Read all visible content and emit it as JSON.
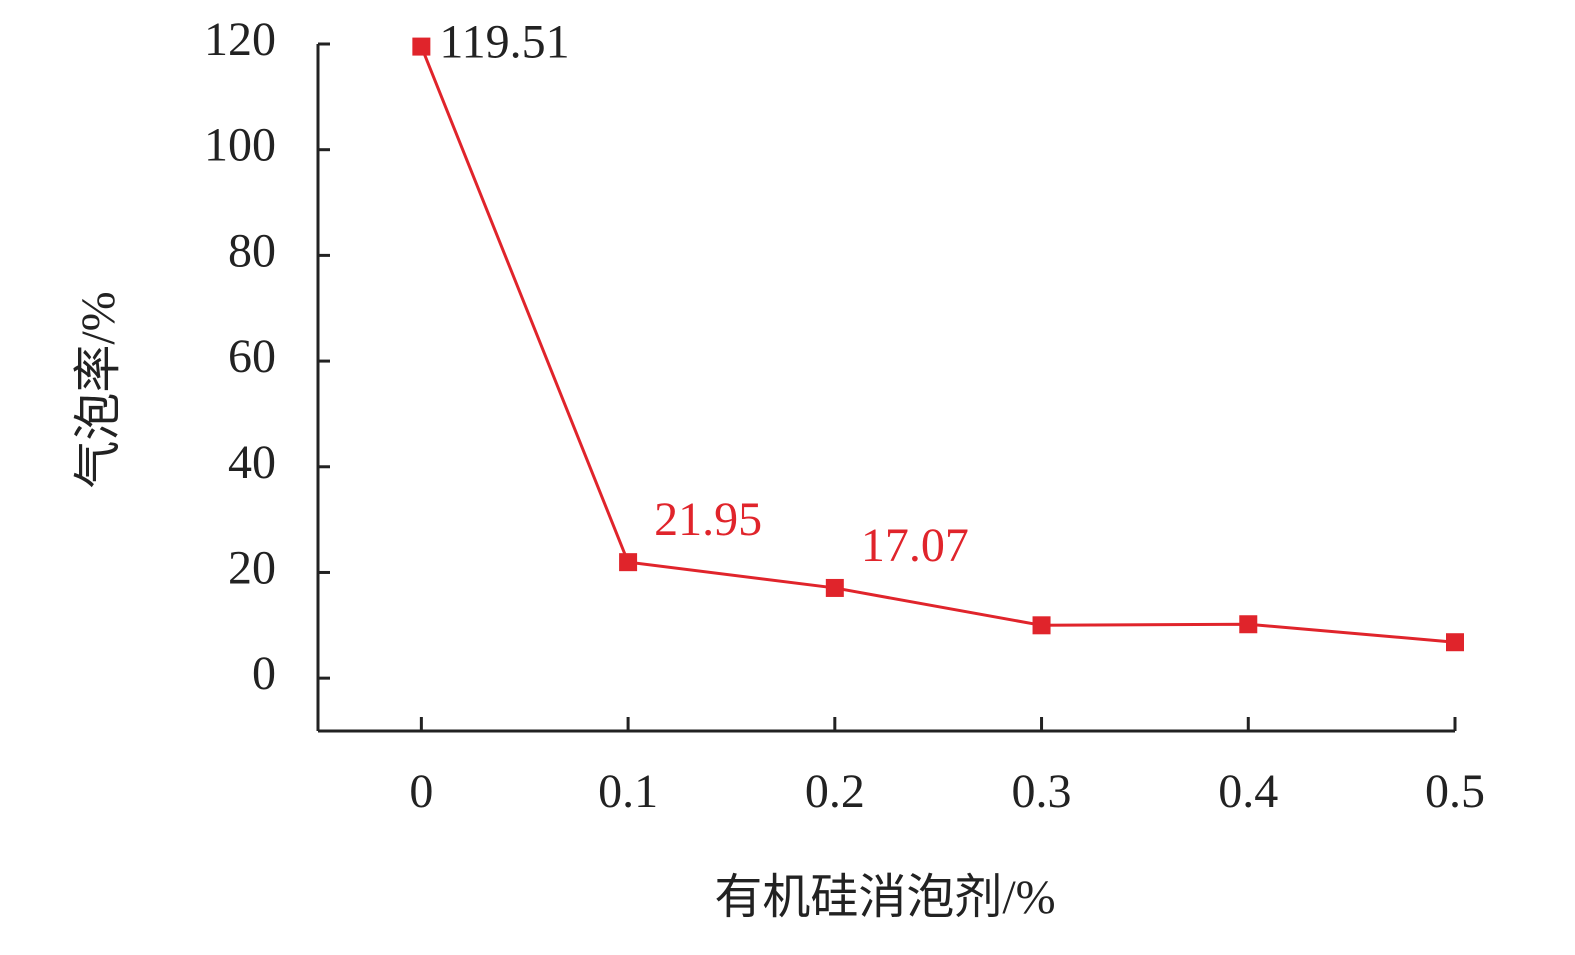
{
  "chart_data": {
    "type": "line",
    "x_label": "有机硅消泡剂/%",
    "y_label": "气泡率/%",
    "x": [
      0,
      0.1,
      0.2,
      0.3,
      0.4,
      0.5
    ],
    "series": [
      {
        "color": "#e0242b",
        "values": [
          119.51,
          21.95,
          17.07,
          10.0,
          10.2,
          6.8
        ],
        "value_labels": [
          "119.51",
          "21.95",
          "17.07",
          null,
          null,
          null
        ],
        "value_label_colors": [
          "#222222",
          "#e0242b",
          "#e0242b",
          null,
          null,
          null
        ]
      }
    ],
    "xlim": [
      -0.05,
      0.5
    ],
    "xticks": [
      0,
      0.1,
      0.2,
      0.3,
      0.4,
      0.5
    ],
    "ylim": [
      -10,
      120
    ],
    "yticks": [
      0,
      20,
      40,
      60,
      80,
      100,
      120
    ],
    "grid": false
  }
}
